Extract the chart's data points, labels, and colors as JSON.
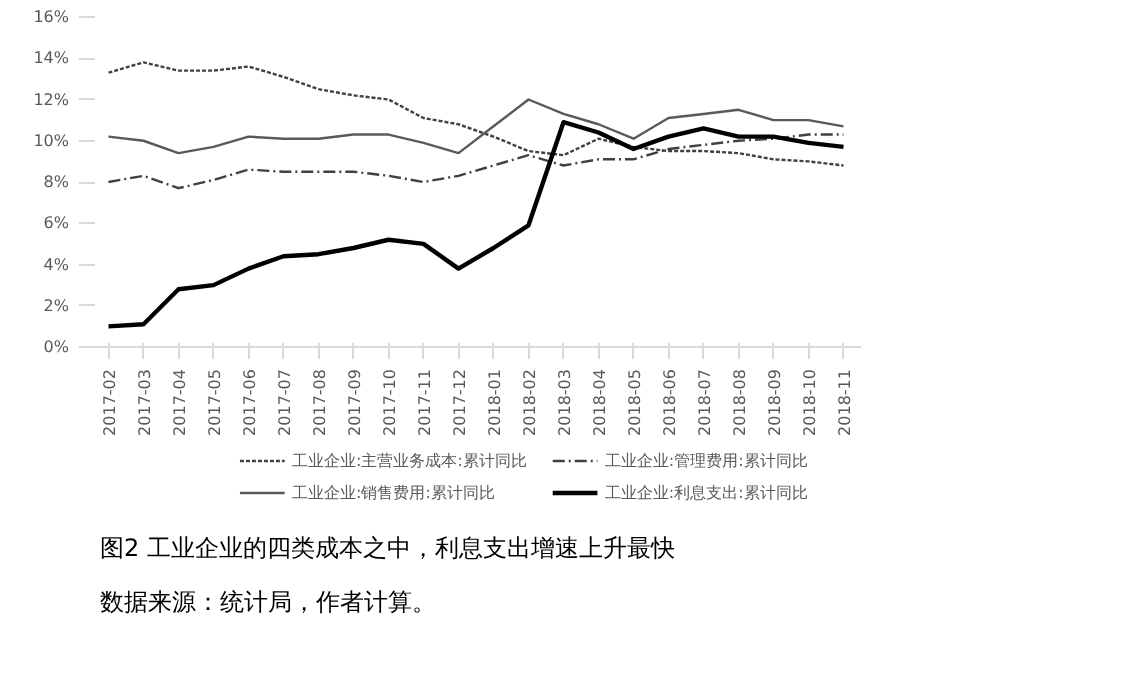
{
  "chart_data": {
    "type": "line",
    "title": "图2 工业企业的四类成本之中，利息支出增速上升最快",
    "categories": [
      "2017-02",
      "2017-03",
      "2017-04",
      "2017-05",
      "2017-06",
      "2017-07",
      "2017-08",
      "2017-09",
      "2017-10",
      "2017-11",
      "2017-12",
      "2018-01",
      "2018-02",
      "2018-03",
      "2018-04",
      "2018-05",
      "2018-06",
      "2018-07",
      "2018-08",
      "2018-09",
      "2018-10",
      "2018-11"
    ],
    "ylim": [
      0,
      16
    ],
    "yticks": [
      {
        "value": 0,
        "label": "0%"
      },
      {
        "value": 2,
        "label": "2%"
      },
      {
        "value": 4,
        "label": "4%"
      },
      {
        "value": 6,
        "label": "6%"
      },
      {
        "value": 8,
        "label": "8%"
      },
      {
        "value": 10,
        "label": "10%"
      },
      {
        "value": 12,
        "label": "12%"
      },
      {
        "value": 14,
        "label": "14%"
      },
      {
        "value": 16,
        "label": "16%"
      }
    ],
    "series": [
      {
        "name": "工业企业:主营业务成本:累计同比",
        "color": "#404040",
        "line_style": "dotted",
        "values": [
          13.3,
          13.8,
          13.4,
          13.4,
          13.6,
          13.1,
          12.5,
          12.2,
          12.0,
          11.1,
          10.8,
          10.2,
          9.5,
          9.3,
          10.1,
          9.7,
          9.5,
          9.5,
          9.4,
          9.1,
          9.0,
          8.8
        ]
      },
      {
        "name": "工业企业:管理费用:累计同比",
        "color": "#404040",
        "line_style": "dashed",
        "values": [
          8.0,
          8.3,
          7.7,
          8.1,
          8.6,
          8.5,
          8.5,
          8.5,
          8.3,
          8.0,
          8.3,
          8.8,
          9.3,
          8.8,
          9.1,
          9.1,
          9.6,
          9.8,
          10.0,
          10.1,
          10.3,
          10.3
        ]
      },
      {
        "name": "工业企业:销售费用:累计同比",
        "color": "#595959",
        "line_style": "solid",
        "values": [
          10.2,
          10.0,
          9.4,
          9.7,
          10.2,
          10.1,
          10.1,
          10.3,
          10.3,
          9.9,
          9.4,
          10.7,
          12.0,
          11.3,
          10.8,
          10.1,
          11.1,
          11.3,
          11.5,
          11.0,
          11.0,
          10.7
        ]
      },
      {
        "name": "工业企业:利息支出:累计同比",
        "color": "#000000",
        "line_style": "solid",
        "values": [
          1.0,
          1.1,
          2.8,
          3.0,
          3.8,
          4.4,
          4.5,
          4.8,
          5.2,
          5.0,
          3.8,
          4.8,
          5.9,
          10.9,
          10.4,
          9.6,
          10.2,
          10.6,
          10.2,
          10.2,
          9.9,
          9.7
        ]
      }
    ],
    "legend": "bottom",
    "grid": false,
    "annotations": [
      "数据来源：统计局，作者计算。"
    ]
  }
}
